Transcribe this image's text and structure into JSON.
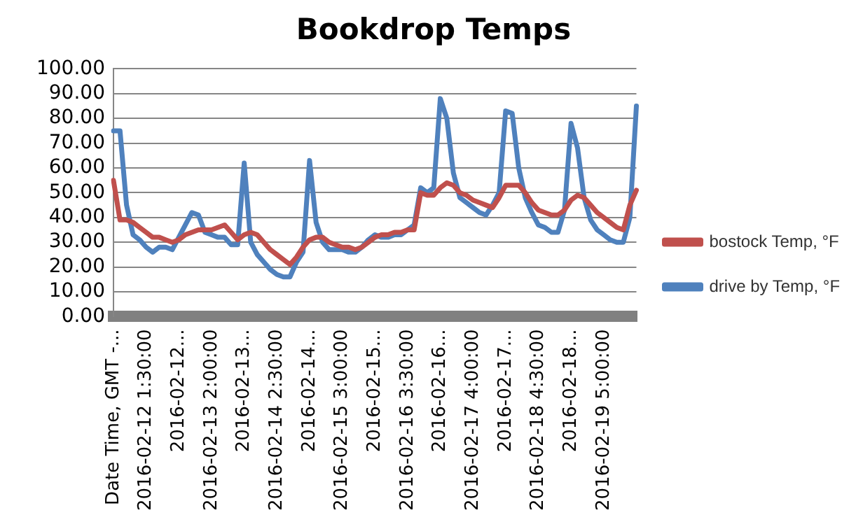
{
  "chart_data": {
    "type": "line",
    "title": "Bookdrop Temps",
    "categories": [
      "Date Time, GMT -...",
      null,
      null,
      null,
      null,
      "2016-02-12 1:30:00",
      null,
      null,
      null,
      null,
      "2016-02-12...",
      null,
      null,
      null,
      null,
      "2016-02-13 2:00:00",
      null,
      null,
      null,
      null,
      "2016-02-13...",
      null,
      null,
      null,
      null,
      "2016-02-14 2:30:00",
      null,
      null,
      null,
      null,
      "2016-02-14...",
      null,
      null,
      null,
      null,
      "2016-02-15 3:00:00",
      null,
      null,
      null,
      null,
      "2016-02-15...",
      null,
      null,
      null,
      null,
      "2016-02-16 3:30:00",
      null,
      null,
      null,
      null,
      "2016-02-16...",
      null,
      null,
      null,
      null,
      "2016-02-17 4:00:00",
      null,
      null,
      null,
      null,
      "2016-02-17...",
      null,
      null,
      null,
      null,
      "2016-02-18 4:30:00",
      null,
      null,
      null,
      null,
      "2016-02-18...",
      null,
      null,
      null,
      null,
      "2016-02-19 5:00:00",
      null,
      null,
      null,
      null,
      null
    ],
    "series": [
      {
        "name": "bostock Temp, °F",
        "color": "#c0504d",
        "values": [
          55,
          39,
          39,
          38,
          36,
          34,
          32,
          32,
          31,
          30,
          31,
          33,
          34,
          35,
          35,
          35,
          36,
          37,
          34,
          31,
          33,
          34,
          33,
          30,
          27,
          25,
          23,
          21,
          24,
          28,
          31,
          32,
          32,
          30,
          29,
          28,
          28,
          27,
          28,
          30,
          32,
          33,
          33,
          34,
          34,
          35,
          35,
          50,
          49,
          49,
          52,
          54,
          53,
          50,
          49,
          47,
          46,
          45,
          44,
          48,
          53,
          53,
          53,
          50,
          46,
          43,
          42,
          41,
          41,
          43,
          47,
          49,
          48,
          45,
          42,
          40,
          38,
          36,
          35,
          45,
          51
        ]
      },
      {
        "name": "drive by Temp, °F",
        "color": "#4f81bd",
        "values": [
          75,
          75,
          45,
          33,
          31,
          28,
          26,
          28,
          28,
          27,
          32,
          37,
          42,
          41,
          34,
          33,
          32,
          32,
          29,
          29,
          62,
          30,
          25,
          22,
          19,
          17,
          16,
          16,
          22,
          26,
          63,
          38,
          30,
          27,
          27,
          27,
          26,
          26,
          28,
          31,
          33,
          32,
          32,
          33,
          33,
          35,
          37,
          52,
          50,
          52,
          88,
          80,
          58,
          48,
          46,
          44,
          42,
          41,
          45,
          50,
          83,
          82,
          60,
          48,
          42,
          37,
          36,
          34,
          34,
          43,
          78,
          68,
          48,
          39,
          35,
          33,
          31,
          30,
          30,
          40,
          85
        ]
      }
    ],
    "ylim": [
      0,
      100
    ],
    "yticks": [
      {
        "value": 0,
        "label": "0.00"
      },
      {
        "value": 10,
        "label": "10.00"
      },
      {
        "value": 20,
        "label": "20.00"
      },
      {
        "value": 30,
        "label": "30.00"
      },
      {
        "value": 40,
        "label": "40.00"
      },
      {
        "value": 50,
        "label": "50.00"
      },
      {
        "value": 60,
        "label": "60.00"
      },
      {
        "value": 70,
        "label": "70.00"
      },
      {
        "value": 80,
        "label": "80.00"
      },
      {
        "value": 90,
        "label": "90.00"
      },
      {
        "value": 100,
        "label": "100.00"
      }
    ],
    "grid": "y",
    "legend": "right",
    "marker": "none",
    "line_style": "solid"
  }
}
